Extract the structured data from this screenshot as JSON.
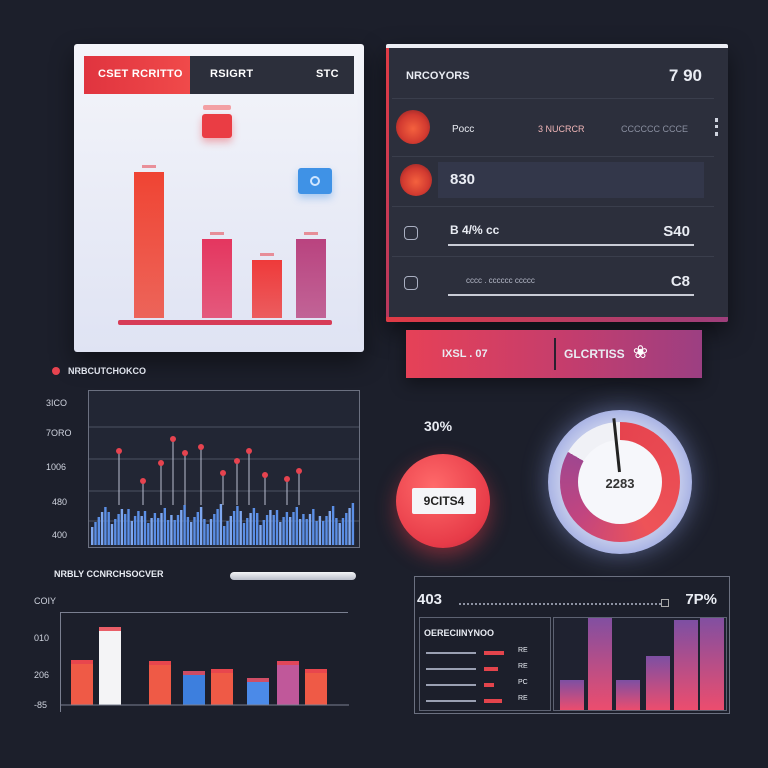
{
  "panel1": {
    "header_left": "CSET RCRITTO",
    "header_mid": "RSIGRT",
    "header_right": "STC",
    "colors": {
      "accent": "#e0343f",
      "chip_blue": "#3f92e6"
    },
    "bars": [
      {
        "value": 155,
        "color": "#ef4433"
      },
      {
        "value": 84,
        "color": "#e4365f"
      },
      {
        "value": 61,
        "color": "#ee3a3a"
      },
      {
        "value": 84,
        "color": "#b9437f"
      }
    ],
    "bar_max": 180
  },
  "panel2": {
    "title": "NRCOYORS",
    "top_value": "7 90",
    "rows": [
      {
        "label": "Pocc",
        "mid": "3 NUCRCR",
        "right": "CCCCCC CCCE"
      },
      {
        "value": "830"
      },
      {
        "value_left": "B 4/% cc",
        "value_right": "S40"
      },
      {
        "caption": "cccc . cccccc ccccc",
        "value_right": "C8"
      }
    ],
    "icons": [
      "flame-icon",
      "flame-icon",
      "gear-icon",
      "chat-icon"
    ]
  },
  "cta": {
    "left_label": "IXSL . 07",
    "right_label": "GLCRTISS",
    "icon": "link-icon"
  },
  "legend": {
    "label": "NRBCUTCHOKCO"
  },
  "chart2": {
    "y_labels": [
      "3ICO",
      "7ORO",
      "1006",
      "480",
      "400"
    ],
    "type": "bar"
  },
  "red_circle": {
    "percent": "30%",
    "tag": "9CITS4"
  },
  "gauge": {
    "value": "2283",
    "fill_fraction": 0.83
  },
  "chart3": {
    "title": "NRBLY CCNRCHSOCVER",
    "corner": "COIY",
    "y_labels": [
      "010",
      "206",
      "-85"
    ],
    "bars": [
      {
        "value": 45,
        "color": "#ef5a46"
      },
      {
        "value": 78,
        "color": "#f4f4f6"
      },
      {
        "value": 44,
        "color": "#ef5a46"
      },
      {
        "value": 34,
        "color": "#3d7fde"
      },
      {
        "value": 36,
        "color": "#ef5a46"
      },
      {
        "value": 27,
        "color": "#4b8ae8"
      },
      {
        "value": 44,
        "color": "#c0589a"
      },
      {
        "value": 36,
        "color": "#ef5a46"
      }
    ]
  },
  "panel4": {
    "left_value": "403",
    "right_value": "7P%",
    "table_title": "OERECIINYNOO",
    "table_values": [
      "RE",
      "RE",
      "PC",
      "RE"
    ],
    "bars": [
      30,
      96,
      30,
      54,
      90,
      96
    ]
  }
}
